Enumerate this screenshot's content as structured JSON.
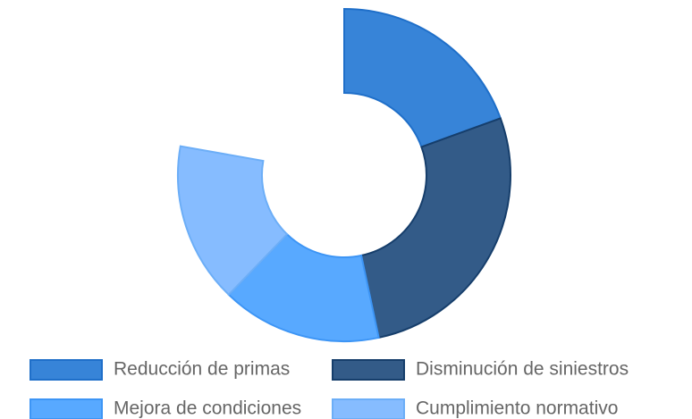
{
  "chart_data": {
    "type": "doughnut",
    "categories": [
      "Reducción de primas",
      "Disminución de siniestros",
      "Mejora de condiciones",
      "Cumplimiento normativo"
    ],
    "values": [
      25,
      35,
      20,
      20
    ],
    "colors": [
      "#3784d8",
      "#335b88",
      "#58a9ff",
      "#86bcff"
    ],
    "border_colors": [
      "#1f6fc9",
      "#163e6b",
      "#3d95f5",
      "#6caef7"
    ],
    "circumference": 280,
    "legend": "bottom"
  }
}
